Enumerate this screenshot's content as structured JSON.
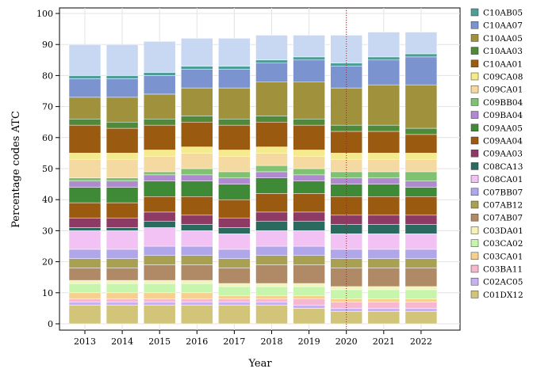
{
  "chart_data": {
    "type": "bar",
    "stacked": true,
    "percent_stacked": true,
    "xlabel": "Year",
    "ylabel": "Percentage codes ATC",
    "ylim": [
      0,
      100
    ],
    "yticks": [
      0,
      10,
      20,
      30,
      40,
      50,
      60,
      70,
      80,
      90,
      100
    ],
    "categories": [
      "2013",
      "2014",
      "2015",
      "2016",
      "2017",
      "2018",
      "2019",
      "2020",
      "2021",
      "2022"
    ],
    "reference_line": {
      "x": "2020",
      "style": "dotted",
      "color": "#8b2a2a"
    },
    "legend_position": "right",
    "legend": [
      {
        "name": "C10AB05",
        "color": "#4f9e96"
      },
      {
        "name": "C10AA07",
        "color": "#7b93cf"
      },
      {
        "name": "C10AA05",
        "color": "#a0923c"
      },
      {
        "name": "C10AA03",
        "color": "#4e8a3a"
      },
      {
        "name": "C10AA01",
        "color": "#9a5a10"
      },
      {
        "name": "C09CA08",
        "color": "#f3eb8e"
      },
      {
        "name": "C09CA01",
        "color": "#f4d9a0"
      },
      {
        "name": "C09BB04",
        "color": "#7fc271"
      },
      {
        "name": "C09BA04",
        "color": "#b08ad1"
      },
      {
        "name": "C09AA05",
        "color": "#3e8a36"
      },
      {
        "name": "C09AA04",
        "color": "#9a5a10"
      },
      {
        "name": "C09AA03",
        "color": "#8d3a64"
      },
      {
        "name": "C08CA13",
        "color": "#2b6a5e"
      },
      {
        "name": "C08CA01",
        "color": "#f1c2f3"
      },
      {
        "name": "C07BB07",
        "color": "#b0a6ea"
      },
      {
        "name": "C07AB12",
        "color": "#a8a052"
      },
      {
        "name": "C07AB07",
        "color": "#b08a66"
      },
      {
        "name": "C03DA01",
        "color": "#f5f2b5"
      },
      {
        "name": "C03CA02",
        "color": "#c8f5ac"
      },
      {
        "name": "C03CA01",
        "color": "#f5d08e"
      },
      {
        "name": "C03BA11",
        "color": "#f5b8cf"
      },
      {
        "name": "C02AC05",
        "color": "#c6b2f0"
      },
      {
        "name": "C01DX12",
        "color": "#d2c57a"
      }
    ],
    "bands": [
      {
        "name": "C01DX12",
        "values": [
          6,
          6,
          6,
          6,
          6,
          6,
          5,
          4,
          4,
          4
        ]
      },
      {
        "name": "C02AC05",
        "values": [
          1,
          1,
          1,
          1,
          1,
          1,
          1,
          1,
          1,
          1
        ]
      },
      {
        "name": "C03BA11",
        "values": [
          1,
          1,
          1,
          1,
          1,
          1,
          2,
          2,
          2,
          2
        ]
      },
      {
        "name": "C03CA01",
        "values": [
          2,
          2,
          2,
          2,
          1,
          1,
          1,
          1,
          1,
          1
        ]
      },
      {
        "name": "C03CA02",
        "values": [
          3,
          3,
          3,
          3,
          3,
          3,
          3,
          3,
          3,
          3
        ]
      },
      {
        "name": "C03DA01",
        "values": [
          1,
          1,
          1,
          1,
          1,
          1,
          1,
          1,
          1,
          1
        ]
      },
      {
        "name": "C07AB07",
        "values": [
          4,
          4,
          5,
          5,
          5,
          6,
          6,
          6,
          6,
          6
        ]
      },
      {
        "name": "C07AB12",
        "values": [
          3,
          3,
          3,
          3,
          3,
          3,
          3,
          3,
          3,
          3
        ]
      },
      {
        "name": "C07BB07",
        "values": [
          3,
          3,
          3,
          3,
          3,
          3,
          3,
          3,
          3,
          3
        ]
      },
      {
        "name": "C08CA01",
        "values": [
          6,
          6,
          6,
          5,
          5,
          5,
          5,
          5,
          5,
          5
        ]
      },
      {
        "name": "C08CA13",
        "values": [
          1,
          1,
          2,
          2,
          2,
          3,
          3,
          3,
          3,
          3
        ]
      },
      {
        "name": "C09AA03",
        "values": [
          3,
          3,
          3,
          3,
          3,
          3,
          3,
          3,
          3,
          3
        ]
      },
      {
        "name": "C09AA04",
        "values": [
          5,
          5,
          5,
          6,
          6,
          6,
          6,
          6,
          6,
          6
        ]
      },
      {
        "name": "C09AA05",
        "values": [
          5,
          5,
          5,
          5,
          5,
          5,
          4,
          4,
          4,
          3
        ]
      },
      {
        "name": "C09BA04",
        "values": [
          2,
          2,
          2,
          2,
          2,
          2,
          2,
          2,
          2,
          2
        ]
      },
      {
        "name": "C09BB04",
        "values": [
          1,
          1,
          1,
          2,
          2,
          2,
          2,
          2,
          2,
          3
        ]
      },
      {
        "name": "C09CA01",
        "values": [
          6,
          6,
          5,
          5,
          5,
          4,
          4,
          4,
          4,
          4
        ]
      },
      {
        "name": "C09CA08",
        "values": [
          2,
          2,
          2,
          2,
          2,
          2,
          2,
          2,
          2,
          2
        ]
      },
      {
        "name": "C10AA01",
        "values": [
          9,
          8,
          8,
          8,
          8,
          8,
          8,
          7,
          7,
          6
        ]
      },
      {
        "name": "C10AA03",
        "values": [
          2,
          2,
          2,
          2,
          2,
          2,
          2,
          2,
          2,
          2
        ]
      },
      {
        "name": "C10AA05",
        "values": [
          7,
          8,
          8,
          9,
          10,
          11,
          12,
          12,
          13,
          14
        ]
      },
      {
        "name": "C10AA07",
        "values": [
          6,
          6,
          6,
          6,
          6,
          6,
          7,
          7,
          8,
          9
        ]
      },
      {
        "name": "C10AB05",
        "values": [
          1,
          1,
          1,
          1,
          1,
          1,
          1,
          1,
          1,
          1
        ]
      },
      {
        "name": "",
        "values": [
          10,
          10,
          10,
          9,
          9,
          8,
          7,
          9,
          8,
          7
        ]
      }
    ]
  }
}
